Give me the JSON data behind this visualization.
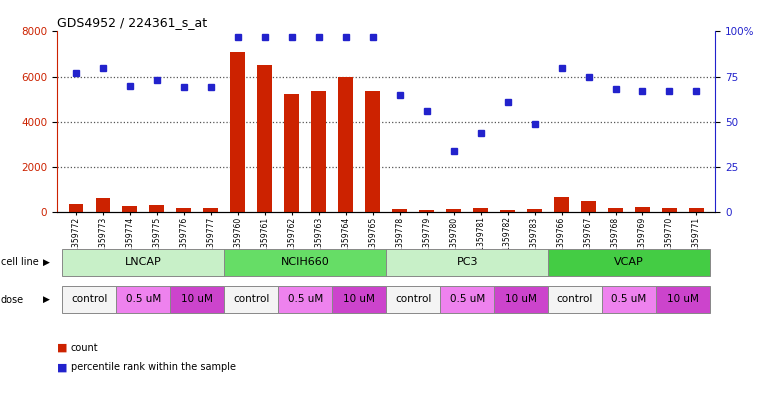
{
  "title": "GDS4952 / 224361_s_at",
  "samples": [
    "GSM1359772",
    "GSM1359773",
    "GSM1359774",
    "GSM1359775",
    "GSM1359776",
    "GSM1359777",
    "GSM1359760",
    "GSM1359761",
    "GSM1359762",
    "GSM1359763",
    "GSM1359764",
    "GSM1359765",
    "GSM1359778",
    "GSM1359779",
    "GSM1359780",
    "GSM1359781",
    "GSM1359782",
    "GSM1359783",
    "GSM1359766",
    "GSM1359767",
    "GSM1359768",
    "GSM1359769",
    "GSM1359770",
    "GSM1359771"
  ],
  "counts": [
    380,
    620,
    260,
    300,
    185,
    200,
    7100,
    6500,
    5250,
    5380,
    6000,
    5380,
    130,
    90,
    150,
    200,
    120,
    130,
    680,
    500,
    190,
    210,
    190,
    185
  ],
  "percentiles": [
    77,
    80,
    70,
    73,
    69,
    69,
    97,
    97,
    97,
    97,
    97,
    97,
    65,
    56,
    34,
    44,
    61,
    49,
    80,
    75,
    68,
    67,
    67,
    67
  ],
  "cell_lines": [
    {
      "name": "LNCAP",
      "start": 0,
      "end": 6
    },
    {
      "name": "NCIH660",
      "start": 6,
      "end": 12
    },
    {
      "name": "PC3",
      "start": 12,
      "end": 18
    },
    {
      "name": "VCAP",
      "start": 18,
      "end": 24
    }
  ],
  "cell_line_colors": {
    "LNCAP": "#c8f0c8",
    "NCIH660": "#66dd66",
    "PC3": "#c8f0c8",
    "VCAP": "#44cc44"
  },
  "doses": [
    {
      "name": "control",
      "start": 0,
      "end": 2
    },
    {
      "name": "0.5 uM",
      "start": 2,
      "end": 4
    },
    {
      "name": "10 uM",
      "start": 4,
      "end": 6
    },
    {
      "name": "control",
      "start": 6,
      "end": 8
    },
    {
      "name": "0.5 uM",
      "start": 8,
      "end": 10
    },
    {
      "name": "10 uM",
      "start": 10,
      "end": 12
    },
    {
      "name": "control",
      "start": 12,
      "end": 14
    },
    {
      "name": "0.5 uM",
      "start": 14,
      "end": 16
    },
    {
      "name": "10 uM",
      "start": 16,
      "end": 18
    },
    {
      "name": "control",
      "start": 18,
      "end": 20
    },
    {
      "name": "0.5 uM",
      "start": 20,
      "end": 22
    },
    {
      "name": "10 uM",
      "start": 22,
      "end": 24
    }
  ],
  "dose_colors": {
    "control": "#f4f4f4",
    "0.5 uM": "#ee82ee",
    "10 uM": "#cc44cc"
  },
  "ylim_left": [
    0,
    8000
  ],
  "ylim_right": [
    0,
    100
  ],
  "yticks_left": [
    0,
    2000,
    4000,
    6000,
    8000
  ],
  "yticks_right": [
    0,
    25,
    50,
    75,
    100
  ],
  "ytick_right_labels": [
    "0",
    "25",
    "50",
    "75",
    "100%"
  ],
  "bar_color": "#cc2200",
  "dot_color": "#2222cc",
  "bg_color": "#ffffff",
  "grid_color": "#555555"
}
